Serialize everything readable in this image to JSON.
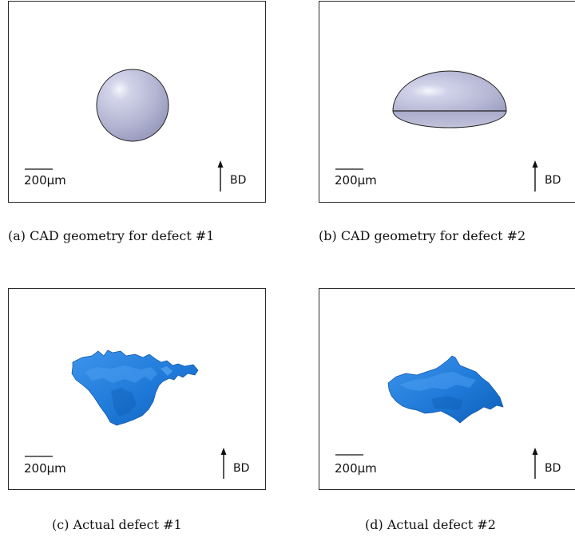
{
  "figures": [
    {
      "scale_text": "200μm",
      "direction_text": "BD",
      "caption": "(a) CAD geometry for defect #1",
      "shape": "sphere"
    },
    {
      "scale_text": "200μm",
      "direction_text": "BD",
      "caption": "(b) CAD geometry for defect #2",
      "shape": "ellipsoid"
    },
    {
      "scale_text": "200μm",
      "direction_text": "BD",
      "caption": "(c) Actual defect #1",
      "shape": "irregular-defect"
    },
    {
      "scale_text": "200μm",
      "direction_text": "BD",
      "caption": "(d) Actual defect #2",
      "shape": "irregular-defect"
    }
  ],
  "colors": {
    "cad_fill": "#b9bad6",
    "defect_fill": "#1e77d6",
    "border": "#2b2b2b"
  }
}
